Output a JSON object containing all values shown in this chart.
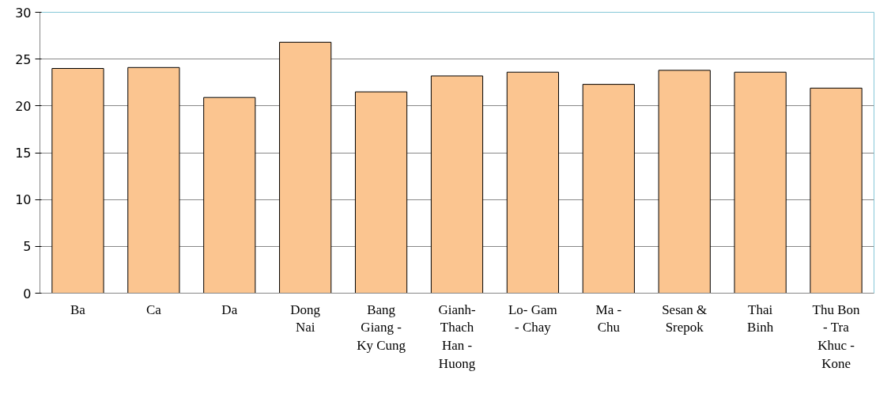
{
  "chart_data": {
    "type": "bar",
    "categories": [
      "Ba",
      "Ca",
      "Da",
      "Dong\nNai",
      "Bang\nGiang -\nKy Cung",
      "Gianh-\nThach\nHan -\nHuong",
      "Lo- Gam\n- Chay",
      "Ma -\nChu",
      "Sesan &\nSrepok",
      "Thai\nBinh",
      "Thu Bon\n- Tra\nKhuc -\nKone"
    ],
    "values": [
      24.0,
      24.1,
      20.9,
      26.8,
      21.5,
      23.2,
      23.6,
      22.3,
      23.8,
      23.6,
      21.9
    ],
    "color": "#fbc590",
    "ylim": [
      0,
      30
    ],
    "yticks": [
      0,
      5,
      10,
      15,
      20,
      25,
      30
    ],
    "grid": "y"
  }
}
